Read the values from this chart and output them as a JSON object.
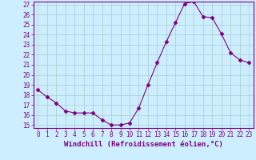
{
  "hours": [
    0,
    1,
    2,
    3,
    4,
    5,
    6,
    7,
    8,
    9,
    10,
    11,
    12,
    13,
    14,
    15,
    16,
    17,
    18,
    19,
    20,
    21,
    22,
    23
  ],
  "values": [
    18.5,
    17.8,
    17.2,
    16.4,
    16.2,
    16.2,
    16.2,
    15.5,
    15.0,
    15.0,
    15.2,
    16.7,
    19.0,
    21.2,
    23.3,
    25.2,
    27.1,
    27.3,
    25.8,
    25.7,
    24.1,
    22.2,
    21.5,
    21.2
  ],
  "line_color": "#800080",
  "marker": "D",
  "marker_size": 2.5,
  "bg_color": "#cceeff",
  "grid_color": "#aacccc",
  "xlabel": "Windchill (Refroidissement éolien,°C)",
  "ylim_min": 15,
  "ylim_max": 27,
  "yticks": [
    15,
    16,
    17,
    18,
    19,
    20,
    21,
    22,
    23,
    24,
    25,
    26,
    27
  ],
  "xticks": [
    0,
    1,
    2,
    3,
    4,
    5,
    6,
    7,
    8,
    9,
    10,
    11,
    12,
    13,
    14,
    15,
    16,
    17,
    18,
    19,
    20,
    21,
    22,
    23
  ],
  "tick_color": "#800080",
  "tick_fontsize": 5.5,
  "xlabel_fontsize": 6.5,
  "axis_color": "#800080",
  "linewidth": 0.8
}
